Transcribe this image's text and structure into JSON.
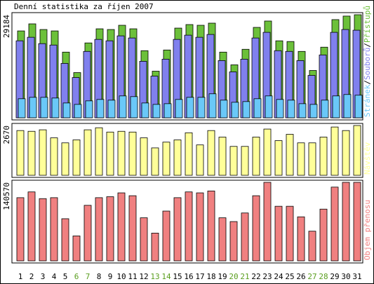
{
  "title": "Denní statistika za říjen 2007",
  "categories": [
    "1",
    "2",
    "3",
    "4",
    "5",
    "6",
    "7",
    "8",
    "9",
    "10",
    "11",
    "12",
    "13",
    "14",
    "15",
    "16",
    "17",
    "18",
    "19",
    "20",
    "21",
    "22",
    "23",
    "24",
    "25",
    "26",
    "27",
    "28",
    "29",
    "30",
    "31"
  ],
  "category_colors": [
    "#000",
    "#000",
    "#000",
    "#000",
    "#000",
    "#5a9e1e",
    "#5a9e1e",
    "#000",
    "#000",
    "#000",
    "#000",
    "#000",
    "#5a9e1e",
    "#5a9e1e",
    "#000",
    "#000",
    "#000",
    "#000",
    "#000",
    "#5a9e1e",
    "#5a9e1e",
    "#000",
    "#000",
    "#000",
    "#000",
    "#000",
    "#5a9e1e",
    "#5a9e1e",
    "#000",
    "#000",
    "#000"
  ],
  "chart_data": [
    {
      "type": "bar",
      "ylim": [
        0,
        29184
      ],
      "yticks": [
        29184
      ],
      "series": [
        {
          "name": "Přístupů",
          "color": "#6cc03a",
          "values": [
            24600,
            26600,
            25000,
            24600,
            18600,
            12800,
            21200,
            25200,
            25000,
            26200,
            25200,
            19000,
            13200,
            19200,
            25400,
            26400,
            26200,
            26800,
            18600,
            15000,
            19400,
            25600,
            27400,
            21800,
            21600,
            18800,
            13400,
            20000,
            27800,
            28800,
            29184
          ]
        },
        {
          "name": "Souborů",
          "color": "#8080ee",
          "values": [
            21800,
            22800,
            21000,
            20600,
            15400,
            11400,
            18800,
            22200,
            21800,
            23200,
            22600,
            16000,
            11800,
            16600,
            22200,
            23400,
            22800,
            23600,
            16200,
            13000,
            16600,
            22600,
            24200,
            19000,
            18800,
            16200,
            12000,
            17800,
            24200,
            25000,
            24800
          ]
        },
        {
          "name": "Stránek",
          "color": "#6ac8f8",
          "values": [
            5400,
            5800,
            5800,
            5600,
            4200,
            3800,
            4800,
            5200,
            5000,
            6200,
            6000,
            4200,
            3800,
            4000,
            5200,
            5800,
            5800,
            6800,
            5000,
            4400,
            4600,
            5400,
            6200,
            5200,
            5000,
            4000,
            3800,
            5000,
            6200,
            6600,
            6400
          ]
        }
      ]
    },
    {
      "type": "bar",
      "ylim": [
        0,
        2670
      ],
      "yticks": [
        2670
      ],
      "series": [
        {
          "name": "Návštěv",
          "color": "#ffff99",
          "values": [
            2400,
            2360,
            2440,
            2010,
            1740,
            1900,
            2440,
            2550,
            2320,
            2360,
            2320,
            2010,
            1470,
            1780,
            1900,
            2280,
            1630,
            2400,
            2050,
            1550,
            1550,
            2050,
            2480,
            1860,
            2200,
            1740,
            1740,
            2050,
            2590,
            2400,
            2670
          ]
        }
      ]
    },
    {
      "type": "bar",
      "ylim": [
        0,
        140570
      ],
      "yticks": [
        140570
      ],
      "series": [
        {
          "name": "Objem přenosu",
          "color": "#f08080",
          "values": [
            113100,
            123400,
            111400,
            113100,
            75400,
            44600,
            99400,
            113100,
            114800,
            121700,
            116600,
            77100,
            49700,
            89100,
            113100,
            123400,
            121700,
            125100,
            77100,
            70300,
            85700,
            116600,
            140570,
            97700,
            97700,
            78800,
            53100,
            92600,
            132000,
            140570,
            140570
          ]
        }
      ]
    }
  ]
}
